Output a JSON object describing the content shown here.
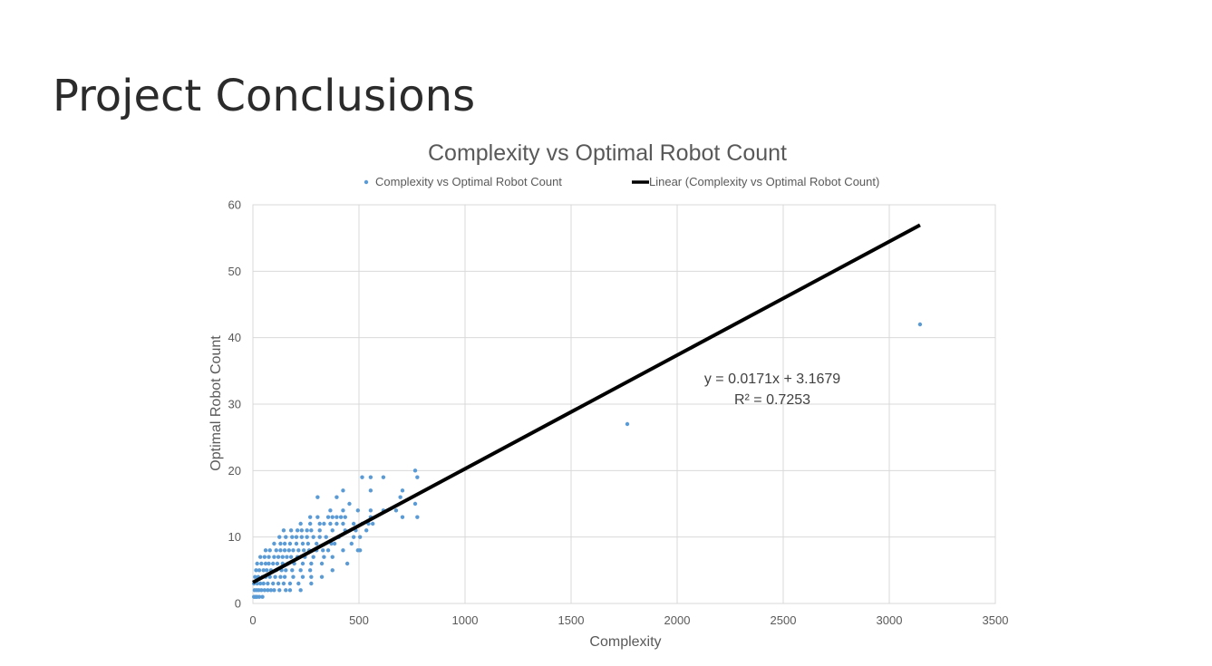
{
  "slide": {
    "title": "Project Conclusions"
  },
  "colors": {
    "points": "#5b9bd5",
    "trendline": "#000000",
    "grid": "#d9d9d9",
    "text": "#595959"
  },
  "chart_data": {
    "type": "scatter",
    "title": "Complexity vs Optimal Robot Count",
    "xlabel": "Complexity",
    "ylabel": "Optimal Robot Count",
    "xlim": [
      0,
      3500
    ],
    "ylim": [
      0,
      60
    ],
    "xticks": [
      0,
      500,
      1000,
      1500,
      2000,
      2500,
      3000,
      3500
    ],
    "yticks": [
      0,
      10,
      20,
      30,
      40,
      50,
      60
    ],
    "grid": true,
    "legend_position": "top",
    "legend": {
      "series_label": "Complexity vs Optimal Robot Count",
      "trend_label": "Linear (Complexity vs Optimal Robot Count)"
    },
    "trendline": {
      "slope": 0.0171,
      "intercept": 3.1679,
      "x_range": [
        0,
        3145
      ],
      "equation": "y = 0.0171x + 3.1679",
      "r_squared": "R² = 0.7253"
    },
    "series": [
      {
        "name": "Complexity vs Optimal Robot Count",
        "points": [
          [
            5,
            1
          ],
          [
            10,
            1
          ],
          [
            15,
            1
          ],
          [
            20,
            1
          ],
          [
            30,
            1
          ],
          [
            45,
            1
          ],
          [
            8,
            2
          ],
          [
            18,
            2
          ],
          [
            28,
            2
          ],
          [
            40,
            2
          ],
          [
            55,
            2
          ],
          [
            70,
            2
          ],
          [
            85,
            2
          ],
          [
            100,
            2
          ],
          [
            125,
            2
          ],
          [
            155,
            2
          ],
          [
            175,
            2
          ],
          [
            225,
            2
          ],
          [
            5,
            3
          ],
          [
            20,
            3
          ],
          [
            35,
            3
          ],
          [
            50,
            3
          ],
          [
            70,
            3
          ],
          [
            95,
            3
          ],
          [
            120,
            3
          ],
          [
            145,
            3
          ],
          [
            175,
            3
          ],
          [
            215,
            3
          ],
          [
            275,
            3
          ],
          [
            10,
            4
          ],
          [
            25,
            4
          ],
          [
            45,
            4
          ],
          [
            60,
            4
          ],
          [
            80,
            4
          ],
          [
            105,
            4
          ],
          [
            130,
            4
          ],
          [
            150,
            4
          ],
          [
            190,
            4
          ],
          [
            235,
            4
          ],
          [
            275,
            4
          ],
          [
            325,
            4
          ],
          [
            15,
            5
          ],
          [
            30,
            5
          ],
          [
            50,
            5
          ],
          [
            65,
            5
          ],
          [
            85,
            5
          ],
          [
            110,
            5
          ],
          [
            135,
            5
          ],
          [
            155,
            5
          ],
          [
            185,
            5
          ],
          [
            225,
            5
          ],
          [
            270,
            5
          ],
          [
            375,
            5
          ],
          [
            20,
            6
          ],
          [
            40,
            6
          ],
          [
            60,
            6
          ],
          [
            75,
            6
          ],
          [
            95,
            6
          ],
          [
            115,
            6
          ],
          [
            140,
            6
          ],
          [
            165,
            6
          ],
          [
            195,
            6
          ],
          [
            235,
            6
          ],
          [
            275,
            6
          ],
          [
            325,
            6
          ],
          [
            445,
            6
          ],
          [
            35,
            7
          ],
          [
            55,
            7
          ],
          [
            75,
            7
          ],
          [
            100,
            7
          ],
          [
            120,
            7
          ],
          [
            140,
            7
          ],
          [
            160,
            7
          ],
          [
            180,
            7
          ],
          [
            210,
            7
          ],
          [
            245,
            7
          ],
          [
            285,
            7
          ],
          [
            335,
            7
          ],
          [
            375,
            7
          ],
          [
            60,
            8
          ],
          [
            80,
            8
          ],
          [
            110,
            8
          ],
          [
            130,
            8
          ],
          [
            150,
            8
          ],
          [
            170,
            8
          ],
          [
            190,
            8
          ],
          [
            215,
            8
          ],
          [
            240,
            8
          ],
          [
            265,
            8
          ],
          [
            300,
            8
          ],
          [
            330,
            8
          ],
          [
            355,
            8
          ],
          [
            425,
            8
          ],
          [
            495,
            8
          ],
          [
            505,
            8
          ],
          [
            100,
            9
          ],
          [
            130,
            9
          ],
          [
            150,
            9
          ],
          [
            175,
            9
          ],
          [
            205,
            9
          ],
          [
            235,
            9
          ],
          [
            260,
            9
          ],
          [
            300,
            9
          ],
          [
            370,
            9
          ],
          [
            385,
            9
          ],
          [
            465,
            9
          ],
          [
            125,
            10
          ],
          [
            155,
            10
          ],
          [
            185,
            10
          ],
          [
            205,
            10
          ],
          [
            230,
            10
          ],
          [
            255,
            10
          ],
          [
            285,
            10
          ],
          [
            315,
            10
          ],
          [
            345,
            10
          ],
          [
            405,
            10
          ],
          [
            475,
            10
          ],
          [
            505,
            10
          ],
          [
            145,
            11
          ],
          [
            180,
            11
          ],
          [
            210,
            11
          ],
          [
            230,
            11
          ],
          [
            255,
            11
          ],
          [
            275,
            11
          ],
          [
            315,
            11
          ],
          [
            375,
            11
          ],
          [
            435,
            11
          ],
          [
            485,
            11
          ],
          [
            535,
            11
          ],
          [
            225,
            12
          ],
          [
            270,
            12
          ],
          [
            315,
            12
          ],
          [
            335,
            12
          ],
          [
            365,
            12
          ],
          [
            395,
            12
          ],
          [
            425,
            12
          ],
          [
            475,
            12
          ],
          [
            515,
            12
          ],
          [
            545,
            12
          ],
          [
            565,
            12
          ],
          [
            270,
            13
          ],
          [
            305,
            13
          ],
          [
            355,
            13
          ],
          [
            375,
            13
          ],
          [
            395,
            13
          ],
          [
            415,
            13
          ],
          [
            435,
            13
          ],
          [
            555,
            13
          ],
          [
            705,
            13
          ],
          [
            775,
            13
          ],
          [
            365,
            14
          ],
          [
            425,
            14
          ],
          [
            495,
            14
          ],
          [
            555,
            14
          ],
          [
            615,
            14
          ],
          [
            675,
            14
          ],
          [
            455,
            15
          ],
          [
            765,
            15
          ],
          [
            305,
            16
          ],
          [
            395,
            16
          ],
          [
            695,
            16
          ],
          [
            425,
            17
          ],
          [
            555,
            17
          ],
          [
            705,
            17
          ],
          [
            515,
            19
          ],
          [
            555,
            19
          ],
          [
            615,
            19
          ],
          [
            775,
            19
          ],
          [
            765,
            20
          ],
          [
            1765,
            27
          ],
          [
            3145,
            42
          ]
        ]
      }
    ]
  }
}
